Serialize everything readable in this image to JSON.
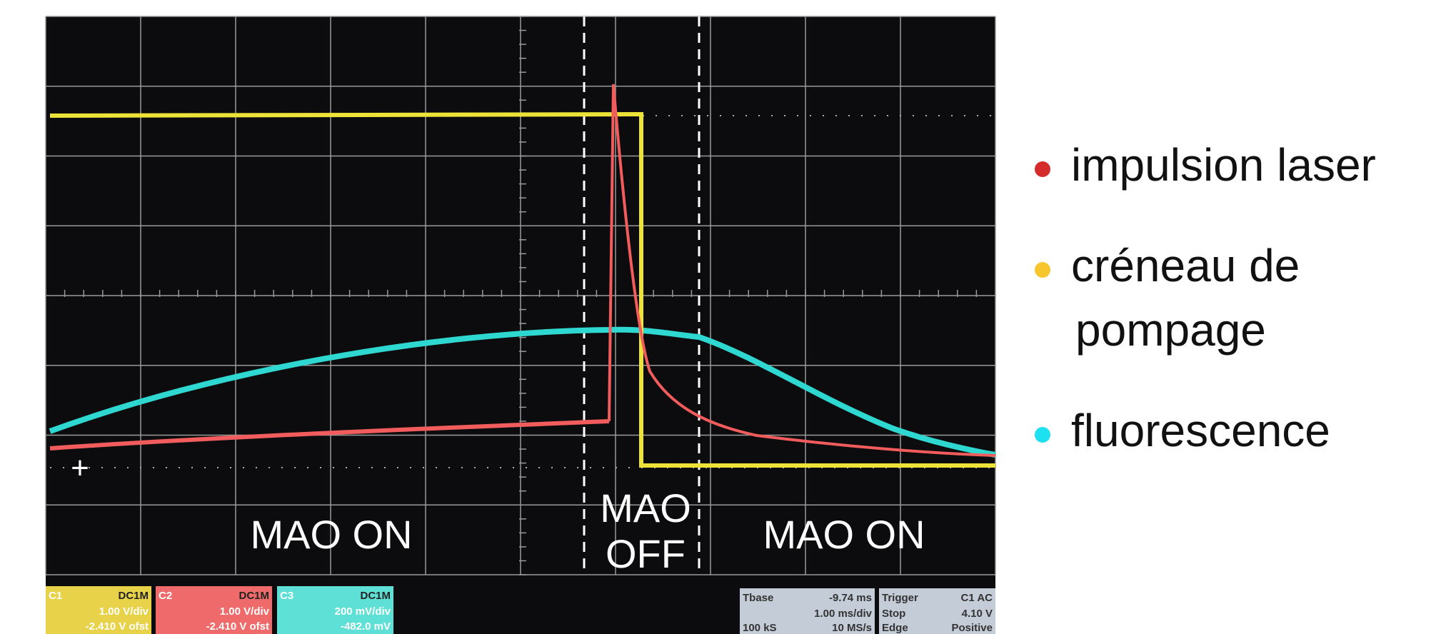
{
  "screen": {
    "labels": {
      "left": "MAO ON",
      "middle_top": "MAO",
      "middle_bottom": "OFF",
      "right": "MAO ON"
    },
    "marker": "+",
    "channels": [
      {
        "name": "C1",
        "coupling": "DC1M",
        "scale": "1.00 V/div",
        "offset": "-2.410 V ofst"
      },
      {
        "name": "C2",
        "coupling": "DC1M",
        "scale": "1.00 V/div",
        "offset": "-2.410 V ofst"
      },
      {
        "name": "C3",
        "coupling": "DC1M",
        "scale": "200 mV/div",
        "offset": "-482.0 mV"
      }
    ],
    "timebase": {
      "title": "Tbase",
      "delay": "-9.74 ms",
      "scale": "1.00 ms/div",
      "samples": "100 kS",
      "rate": "10 MS/s"
    },
    "trigger": {
      "title": "Trigger",
      "source": "C1 AC",
      "mode": "Stop",
      "level": "4.10 V",
      "type": "Edge",
      "slope": "Positive"
    }
  },
  "legend": {
    "items": [
      {
        "label": "impulsion laser",
        "color": "#d62b2b"
      },
      {
        "label": "créneau de",
        "label2": "pompage",
        "color": "#f7c62f"
      },
      {
        "label": "fluorescence",
        "color": "#1de0f0"
      }
    ]
  }
}
